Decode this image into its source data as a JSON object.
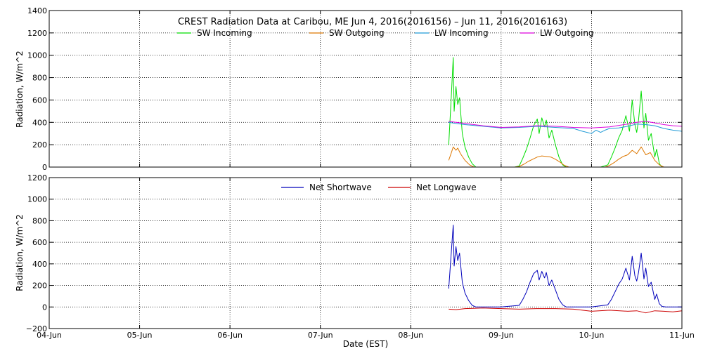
{
  "chart_data": [
    {
      "type": "line",
      "title": "CREST Radiation Data at Caribou, ME   Jun  4, 2016(2016156) – Jun 11, 2016(2016163)",
      "xlabel": "",
      "ylabel": "Radiation, W/m^2",
      "ylim": [
        0,
        1400
      ],
      "yticks": [
        0,
        200,
        400,
        600,
        800,
        1000,
        1200,
        1400
      ],
      "ytick_labels": [
        "0",
        "200",
        "400",
        "600",
        "800",
        "1000",
        "1200",
        "1400"
      ],
      "xlim": [
        0,
        7
      ],
      "xticks": [
        0,
        1,
        2,
        3,
        4,
        5,
        6,
        7
      ],
      "grid": true,
      "legend": "top",
      "series": [
        {
          "name": "SW Incoming",
          "color": "#00dd00",
          "x": [
            4.42,
            4.45,
            4.47,
            4.48,
            4.5,
            4.52,
            4.54,
            4.57,
            4.6,
            4.64,
            4.68,
            4.72,
            4.76,
            4.8,
            4.85,
            4.9,
            4.95,
            5.0,
            5.08,
            5.15,
            5.2,
            5.24,
            5.28,
            5.32,
            5.36,
            5.4,
            5.42,
            5.45,
            5.48,
            5.5,
            5.53,
            5.56,
            5.6,
            5.64,
            5.68,
            5.72,
            5.76,
            5.8,
            5.9,
            6.0,
            6.1,
            6.18,
            6.22,
            6.26,
            6.3,
            6.34,
            6.38,
            6.42,
            6.45,
            6.48,
            6.5,
            6.52,
            6.55,
            6.58,
            6.6,
            6.63,
            6.66,
            6.7,
            6.72,
            6.75,
            6.78,
            6.82,
            6.86,
            6.9,
            7.0
          ],
          "y": [
            200,
            650,
            980,
            500,
            720,
            560,
            620,
            300,
            180,
            90,
            30,
            0,
            0,
            0,
            0,
            0,
            0,
            0,
            0,
            0,
            10,
            80,
            160,
            260,
            370,
            430,
            300,
            440,
            360,
            420,
            260,
            330,
            200,
            90,
            20,
            0,
            0,
            0,
            0,
            0,
            0,
            20,
            90,
            170,
            260,
            330,
            460,
            320,
            600,
            380,
            310,
            420,
            680,
            350,
            480,
            240,
            300,
            90,
            160,
            30,
            0,
            0,
            0,
            0,
            0
          ]
        },
        {
          "name": "SW Outgoing",
          "color": "#dd7700",
          "x": [
            4.42,
            4.45,
            4.47,
            4.5,
            4.52,
            4.55,
            4.6,
            4.65,
            4.7,
            4.75,
            4.8,
            5.0,
            5.15,
            5.2,
            5.25,
            5.3,
            5.35,
            5.4,
            5.45,
            5.5,
            5.55,
            5.6,
            5.65,
            5.7,
            5.75,
            5.8,
            6.0,
            6.15,
            6.2,
            6.25,
            6.3,
            6.35,
            6.4,
            6.45,
            6.5,
            6.55,
            6.6,
            6.65,
            6.7,
            6.75,
            6.8,
            7.0
          ],
          "y": [
            60,
            130,
            180,
            150,
            170,
            120,
            60,
            20,
            0,
            0,
            0,
            0,
            0,
            5,
            25,
            50,
            70,
            90,
            100,
            95,
            90,
            70,
            45,
            15,
            0,
            0,
            0,
            0,
            15,
            40,
            70,
            95,
            110,
            150,
            120,
            180,
            110,
            130,
            60,
            20,
            0,
            0
          ]
        },
        {
          "name": "LW Incoming",
          "color": "#1f9ad6",
          "x": [
            4.42,
            4.5,
            4.6,
            4.8,
            5.0,
            5.2,
            5.4,
            5.6,
            5.8,
            5.9,
            6.0,
            6.05,
            6.1,
            6.15,
            6.2,
            6.3,
            6.4,
            6.5,
            6.6,
            6.7,
            6.8,
            6.9,
            7.0
          ],
          "y": [
            400,
            390,
            380,
            365,
            350,
            355,
            365,
            355,
            345,
            320,
            300,
            330,
            310,
            330,
            345,
            350,
            365,
            385,
            380,
            370,
            345,
            330,
            320
          ]
        },
        {
          "name": "LW Outgoing",
          "color": "#dd00dd",
          "x": [
            4.42,
            4.5,
            4.6,
            4.8,
            5.0,
            5.2,
            5.4,
            5.6,
            5.8,
            6.0,
            6.2,
            6.4,
            6.5,
            6.6,
            6.7,
            6.8,
            6.9,
            7.0
          ],
          "y": [
            410,
            400,
            390,
            370,
            355,
            360,
            370,
            365,
            355,
            350,
            360,
            385,
            400,
            410,
            395,
            380,
            370,
            365
          ]
        }
      ]
    },
    {
      "type": "line",
      "title": "",
      "xlabel": "Date (EST)",
      "ylabel": "Radiation, W/m^2",
      "ylim": [
        -200,
        1200
      ],
      "yticks": [
        -200,
        0,
        200,
        400,
        600,
        800,
        1000,
        1200
      ],
      "ytick_labels": [
        "−200",
        "0",
        "200",
        "400",
        "600",
        "800",
        "1000",
        "1200"
      ],
      "xlim": [
        0,
        7
      ],
      "xticks": [
        0,
        1,
        2,
        3,
        4,
        5,
        6,
        7
      ],
      "xtick_labels": [
        "04-Jun",
        "05-Jun",
        "06-Jun",
        "07-Jun",
        "08-Jun",
        "09-Jun",
        "10-Jun",
        "11-Jun"
      ],
      "grid": true,
      "legend": "top",
      "series": [
        {
          "name": "Net Shortwave",
          "color": "#0000bb",
          "x": [
            4.42,
            4.45,
            4.47,
            4.48,
            4.5,
            4.52,
            4.54,
            4.57,
            4.6,
            4.64,
            4.68,
            4.72,
            4.8,
            5.0,
            5.2,
            5.24,
            5.28,
            5.32,
            5.36,
            5.4,
            5.42,
            5.45,
            5.48,
            5.5,
            5.53,
            5.56,
            5.6,
            5.64,
            5.68,
            5.72,
            5.8,
            6.0,
            6.18,
            6.22,
            6.26,
            6.3,
            6.34,
            6.38,
            6.42,
            6.45,
            6.48,
            6.5,
            6.52,
            6.55,
            6.58,
            6.6,
            6.63,
            6.66,
            6.7,
            6.72,
            6.75,
            6.78,
            6.82,
            7.0
          ],
          "y": [
            170,
            520,
            760,
            380,
            560,
            430,
            500,
            230,
            130,
            60,
            15,
            0,
            0,
            0,
            15,
            70,
            140,
            230,
            310,
            340,
            250,
            330,
            270,
            320,
            200,
            250,
            160,
            70,
            20,
            0,
            0,
            0,
            20,
            70,
            140,
            210,
            260,
            360,
            250,
            470,
            290,
            240,
            320,
            500,
            260,
            360,
            190,
            230,
            70,
            120,
            30,
            5,
            0,
            0
          ]
        },
        {
          "name": "Net Longwave",
          "color": "#cc0000",
          "x": [
            4.42,
            4.5,
            4.6,
            4.8,
            5.0,
            5.2,
            5.4,
            5.6,
            5.8,
            6.0,
            6.2,
            6.4,
            6.5,
            6.6,
            6.7,
            6.8,
            6.9,
            7.0
          ],
          "y": [
            -20,
            -25,
            -15,
            -10,
            -15,
            -20,
            -15,
            -15,
            -20,
            -40,
            -30,
            -40,
            -35,
            -55,
            -35,
            -40,
            -45,
            -35
          ]
        }
      ]
    }
  ]
}
